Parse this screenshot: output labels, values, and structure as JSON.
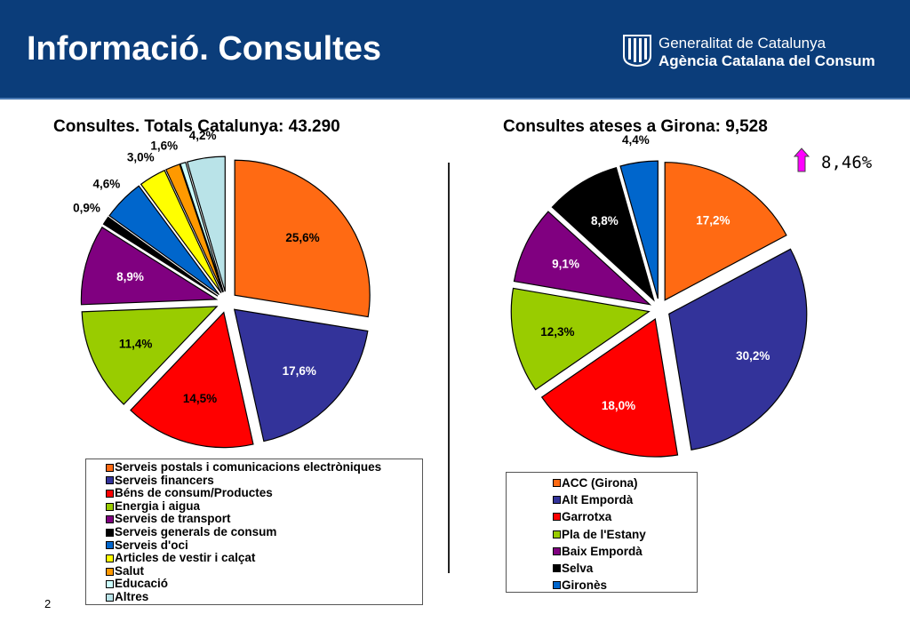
{
  "header": {
    "title": "Informació. Consultes",
    "logo_line1": "Generalitat de Catalunya",
    "logo_line2": "Agència Catalana del Consum",
    "logo_icon": "senyera-icon"
  },
  "page_number": "2",
  "growth": {
    "value": "8,46%",
    "arrow_icon": "up-arrow-icon",
    "color": "#ff00ff"
  },
  "chart_data": [
    {
      "type": "pie",
      "title": "Consultes. Totals Catalunya: 43.290",
      "start_angle_deg": 0,
      "direction": "clockwise",
      "exploded": true,
      "legend_position": "bottom",
      "series": [
        {
          "name": "Serveis postals i comunicacions electròniques",
          "value": 25.6,
          "label": "25,6%",
          "color": "#ff6a13",
          "label_color": "#000000"
        },
        {
          "name": "Serveis financers",
          "value": 17.6,
          "label": "17,6%",
          "color": "#33339a",
          "label_color": "#ffffff"
        },
        {
          "name": "Béns de consum/Productes",
          "value": 14.5,
          "label": "14,5%",
          "color": "#ff0000",
          "label_color": "#000000"
        },
        {
          "name": "Energia i aigua",
          "value": 11.4,
          "label": "11,4%",
          "color": "#99cc00",
          "label_color": "#000000"
        },
        {
          "name": "Serveis de transport",
          "value": 8.9,
          "label": "8,9%",
          "color": "#800080",
          "label_color": "#ffffff"
        },
        {
          "name": "Serveis generals de consum",
          "value": 0.9,
          "label": "0,9%",
          "color": "#000000",
          "label_color": "#ffffff"
        },
        {
          "name": "Serveis d'oci",
          "value": 4.6,
          "label": "4,6%",
          "color": "#0066cc",
          "label_color": "#000000"
        },
        {
          "name": "Articles de vestir i calçat",
          "value": 3.0,
          "label": "3,0%",
          "color": "#ffff00",
          "label_color": "#000000"
        },
        {
          "name": "Salut",
          "value": 1.6,
          "label": "1,6%",
          "color": "#ff9900",
          "label_color": "#000000"
        },
        {
          "name": "Educació",
          "value": 0.6,
          "label": "",
          "color": "#ccffff",
          "label_color": "#000000"
        },
        {
          "name": "Altres",
          "value": 4.2,
          "label": "4,2%",
          "color": "#b9e3e8",
          "label_color": "#000000"
        }
      ]
    },
    {
      "type": "pie",
      "title": "Consultes ateses a Girona: 9,528",
      "start_angle_deg": 0,
      "direction": "clockwise",
      "exploded": true,
      "legend_position": "bottom",
      "series": [
        {
          "name": "ACC (Girona)",
          "value": 17.2,
          "label": "17,2%",
          "color": "#ff6a13",
          "label_color": "#ffffff"
        },
        {
          "name": "Alt Empordà",
          "value": 30.2,
          "label": "30,2%",
          "color": "#33339a",
          "label_color": "#ffffff"
        },
        {
          "name": "Garrotxa",
          "value": 18.0,
          "label": "18,0%",
          "color": "#ff0000",
          "label_color": "#ffffff"
        },
        {
          "name": "Pla de l'Estany",
          "value": 12.3,
          "label": "12,3%",
          "color": "#99cc00",
          "label_color": "#000000"
        },
        {
          "name": "Baix Empordà",
          "value": 9.1,
          "label": "9,1%",
          "color": "#800080",
          "label_color": "#ffffff"
        },
        {
          "name": "Selva",
          "value": 8.8,
          "label": "8,8%",
          "color": "#000000",
          "label_color": "#ffffff"
        },
        {
          "name": "Gironès",
          "value": 4.4,
          "label": "4,4%",
          "color": "#0066cc",
          "label_color": "#000000"
        }
      ]
    }
  ]
}
